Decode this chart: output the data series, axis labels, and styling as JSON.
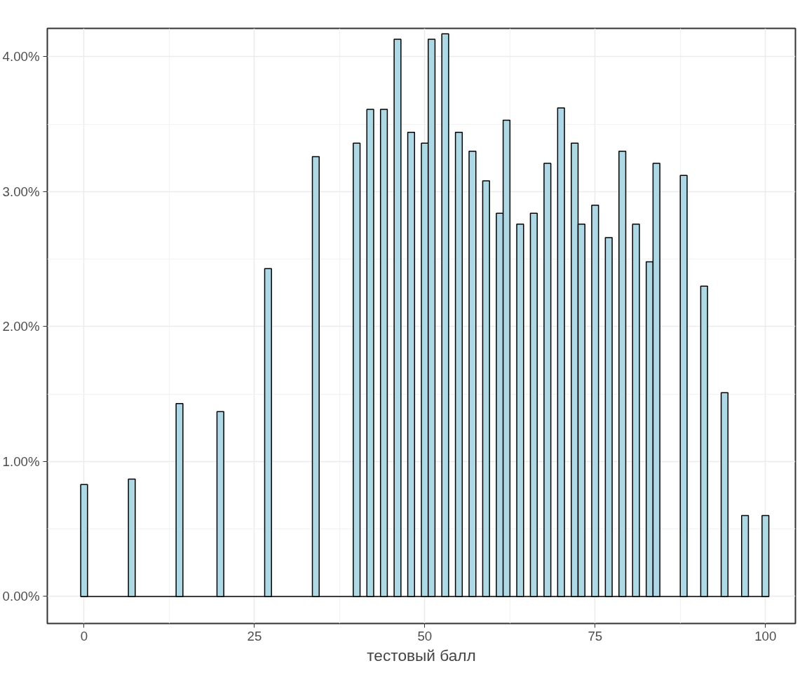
{
  "chart_data": {
    "type": "histogram",
    "xlabel": "тестовый балл",
    "color": "#add8e6",
    "bins": [
      -0.5,
      0.5,
      1.5,
      2.5,
      3.5,
      4.5,
      5.5,
      6.5,
      7.5,
      8.5,
      9.5,
      10.5,
      11.5,
      12.5,
      13.5,
      14.5,
      15.5,
      16.5,
      17.5,
      18.5,
      19.5,
      20.5,
      21.5,
      22.5,
      23.5,
      24.5,
      25.5,
      26.5,
      27.5,
      28.5,
      29.5,
      30.5,
      31.5,
      32.5,
      33.5,
      34.5,
      35.5,
      36.5,
      37.5,
      38.5,
      39.5,
      40.5,
      41.5,
      42.5,
      43.5,
      44.5,
      45.5,
      46.5,
      47.5,
      48.5,
      49.5,
      50.5,
      51.5,
      52.5,
      53.5,
      54.5,
      55.5,
      56.5,
      57.5,
      58.5,
      59.5,
      60.5,
      61.5,
      62.5,
      63.5,
      64.5,
      65.5,
      66.5,
      67.5,
      68.5,
      69.5,
      70.5,
      71.5,
      72.5,
      73.5,
      74.5,
      75.5,
      76.5,
      77.5,
      78.5,
      79.5,
      80.5,
      81.5,
      82.5,
      83.5,
      84.5,
      85.5,
      86.5,
      87.5,
      88.5,
      89.5,
      90.5,
      91.5,
      92.5,
      93.5,
      94.5,
      95.5,
      96.5,
      97.5,
      98.5,
      99.5,
      100.5
    ],
    "values": [
      0.83,
      0,
      0,
      0,
      0,
      0,
      0,
      0.87,
      0,
      0,
      0,
      0,
      0,
      0,
      1.43,
      0,
      0,
      0,
      0,
      0,
      1.37,
      0,
      0,
      0,
      0,
      0,
      0,
      2.43,
      0,
      0,
      0,
      0,
      0,
      0,
      3.26,
      0,
      0,
      0,
      0,
      0,
      3.36,
      0,
      3.61,
      0,
      3.61,
      0,
      4.13,
      0,
      3.44,
      0,
      3.36,
      4.13,
      0,
      4.17,
      0,
      3.44,
      0,
      3.3,
      0,
      3.08,
      0,
      2.84,
      3.53,
      0,
      2.76,
      0,
      2.84,
      0,
      3.21,
      0,
      3.62,
      0,
      3.36,
      2.76,
      0,
      2.9,
      0,
      2.66,
      0,
      3.3,
      0,
      2.76,
      0,
      2.48,
      3.21,
      0,
      0,
      0,
      3.12,
      0,
      0,
      2.3,
      0,
      0,
      1.51,
      0,
      0,
      0.6,
      0,
      0,
      0.6
    ],
    "xlim": [
      -5.4,
      104.4
    ],
    "xticks": [
      0,
      25,
      50,
      75,
      100
    ],
    "ylim": [
      -0.2,
      4.21
    ],
    "yticks": [
      {
        "value": 0,
        "label": "0.00%"
      },
      {
        "value": 1,
        "label": "1.00%"
      },
      {
        "value": 2,
        "label": "2.00%"
      },
      {
        "value": 3,
        "label": "3.00%"
      },
      {
        "value": 4,
        "label": "4.00%"
      }
    ],
    "grid": true
  }
}
